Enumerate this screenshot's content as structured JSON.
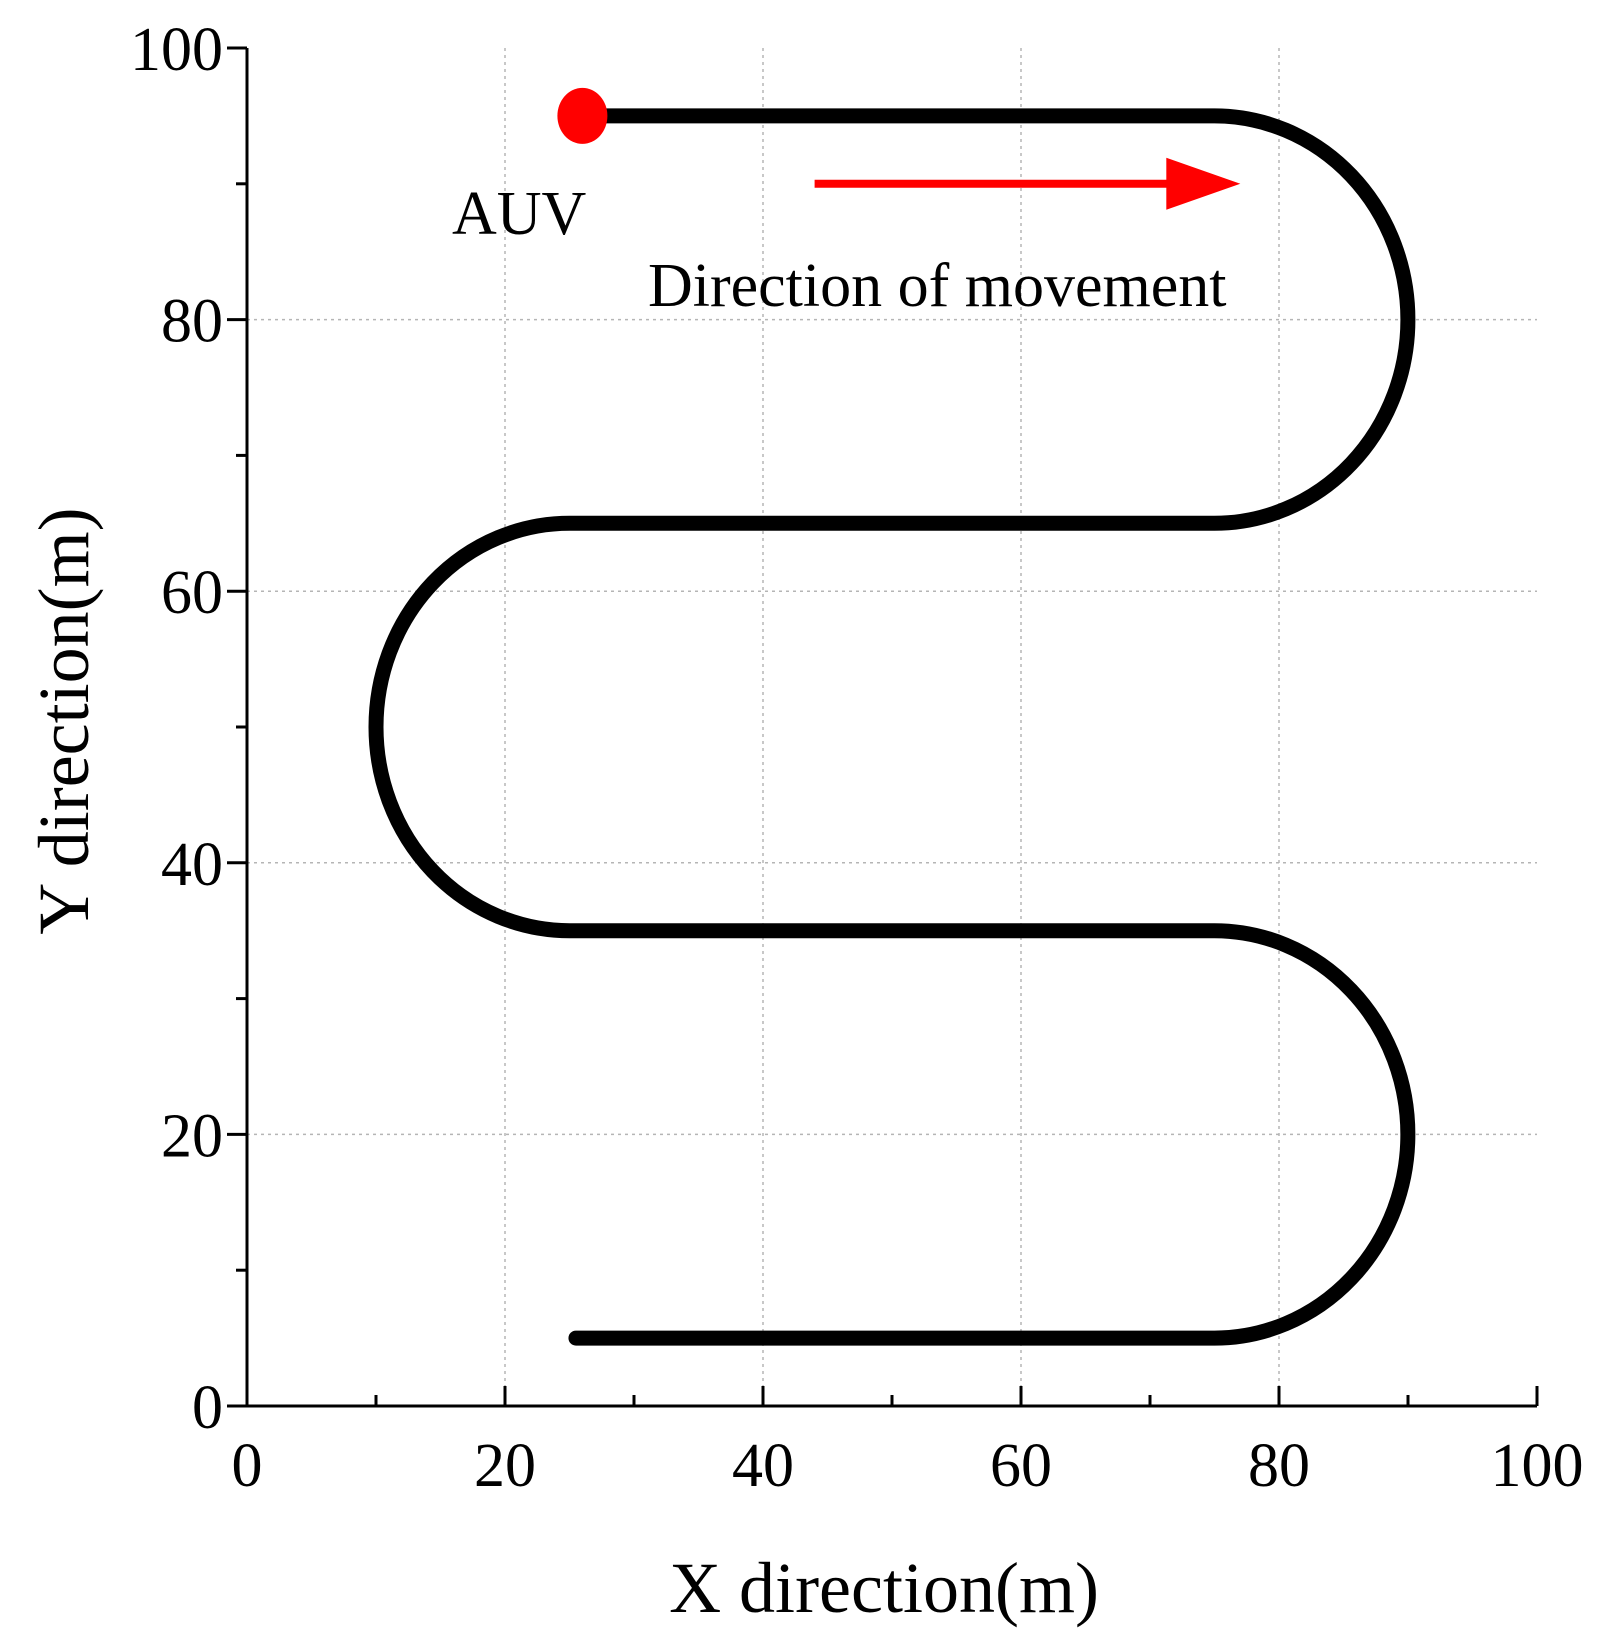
{
  "chart_data": {
    "type": "line",
    "title": "",
    "xlabel": "X direction(m)",
    "ylabel": "Y direction(m)",
    "xlim": [
      0,
      100
    ],
    "ylim": [
      0,
      100
    ],
    "xticks": [
      0,
      20,
      40,
      60,
      80,
      100
    ],
    "yticks": [
      0,
      20,
      40,
      60,
      80,
      100
    ],
    "minor_step": 10,
    "grid": true,
    "legend": "none",
    "series": [
      {
        "color": "#000000",
        "segments": [
          {
            "kind": "line",
            "from": [
              26,
              95
            ],
            "to": [
              75,
              95
            ]
          },
          {
            "kind": "arc",
            "center": [
              75,
              80
            ],
            "radius": 15,
            "direction": "right"
          },
          {
            "kind": "line",
            "from": [
              75,
              65
            ],
            "to": [
              25,
              65
            ]
          },
          {
            "kind": "arc",
            "center": [
              25,
              50
            ],
            "radius": 15,
            "direction": "left"
          },
          {
            "kind": "line",
            "from": [
              25,
              35
            ],
            "to": [
              75,
              35
            ]
          },
          {
            "kind": "arc",
            "center": [
              75,
              20
            ],
            "radius": 15,
            "direction": "right"
          },
          {
            "kind": "line",
            "from": [
              75,
              5
            ],
            "to": [
              25.5,
              5
            ]
          }
        ]
      }
    ],
    "marker": {
      "label": "AUV",
      "x": 26,
      "y": 95,
      "color": "#ff0000"
    },
    "arrow": {
      "label": "Direction of movement",
      "from": [
        44,
        90
      ],
      "to": [
        77,
        90
      ],
      "color": "#ff0000"
    }
  }
}
